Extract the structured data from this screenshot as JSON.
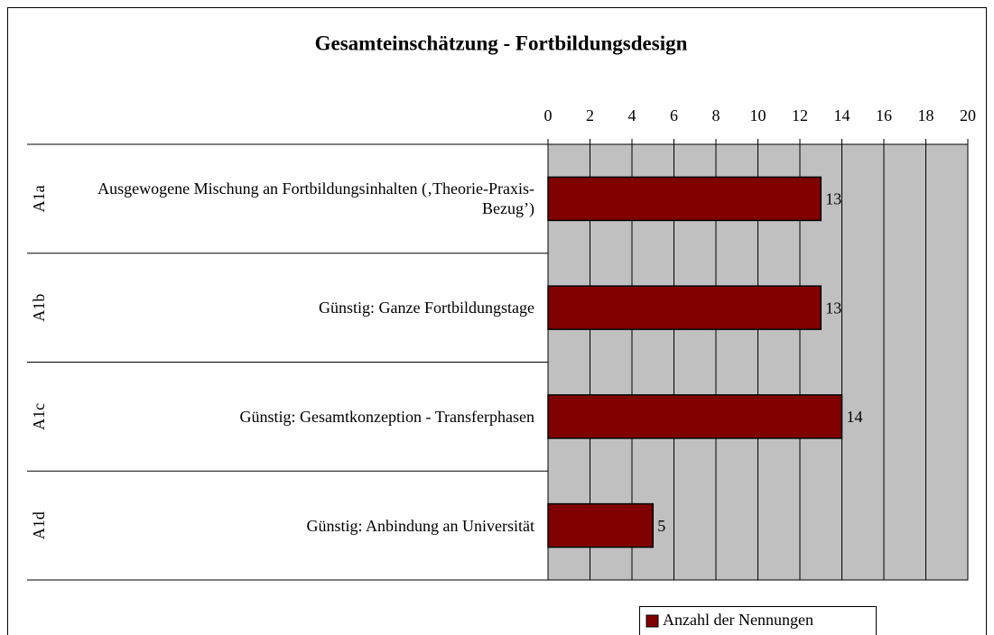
{
  "chart_data": {
    "type": "bar",
    "orientation": "horizontal",
    "title": "Gesamteinschätzung - Fortbildungsdesign",
    "category_codes": [
      "A1a",
      "A1b",
      "A1c",
      "A1d"
    ],
    "categories": [
      "Ausgewogene Mischung an Fortbildungsinhalten (‚Theorie-Praxis-Bezug’)",
      "Günstig: Ganze Fortbildungstage",
      "Günstig: Gesamtkonzeption - Transferphasen",
      "Günstig: Anbindung an Universität"
    ],
    "series": [
      {
        "name": "Anzahl der Nennungen",
        "color": "#800000",
        "values": [
          13,
          13,
          14,
          5
        ]
      }
    ],
    "xlim": [
      0,
      20
    ],
    "xticks": [
      0,
      2,
      4,
      6,
      8,
      10,
      12,
      14,
      16,
      18,
      20
    ],
    "grid": true,
    "legend": "bottom"
  }
}
